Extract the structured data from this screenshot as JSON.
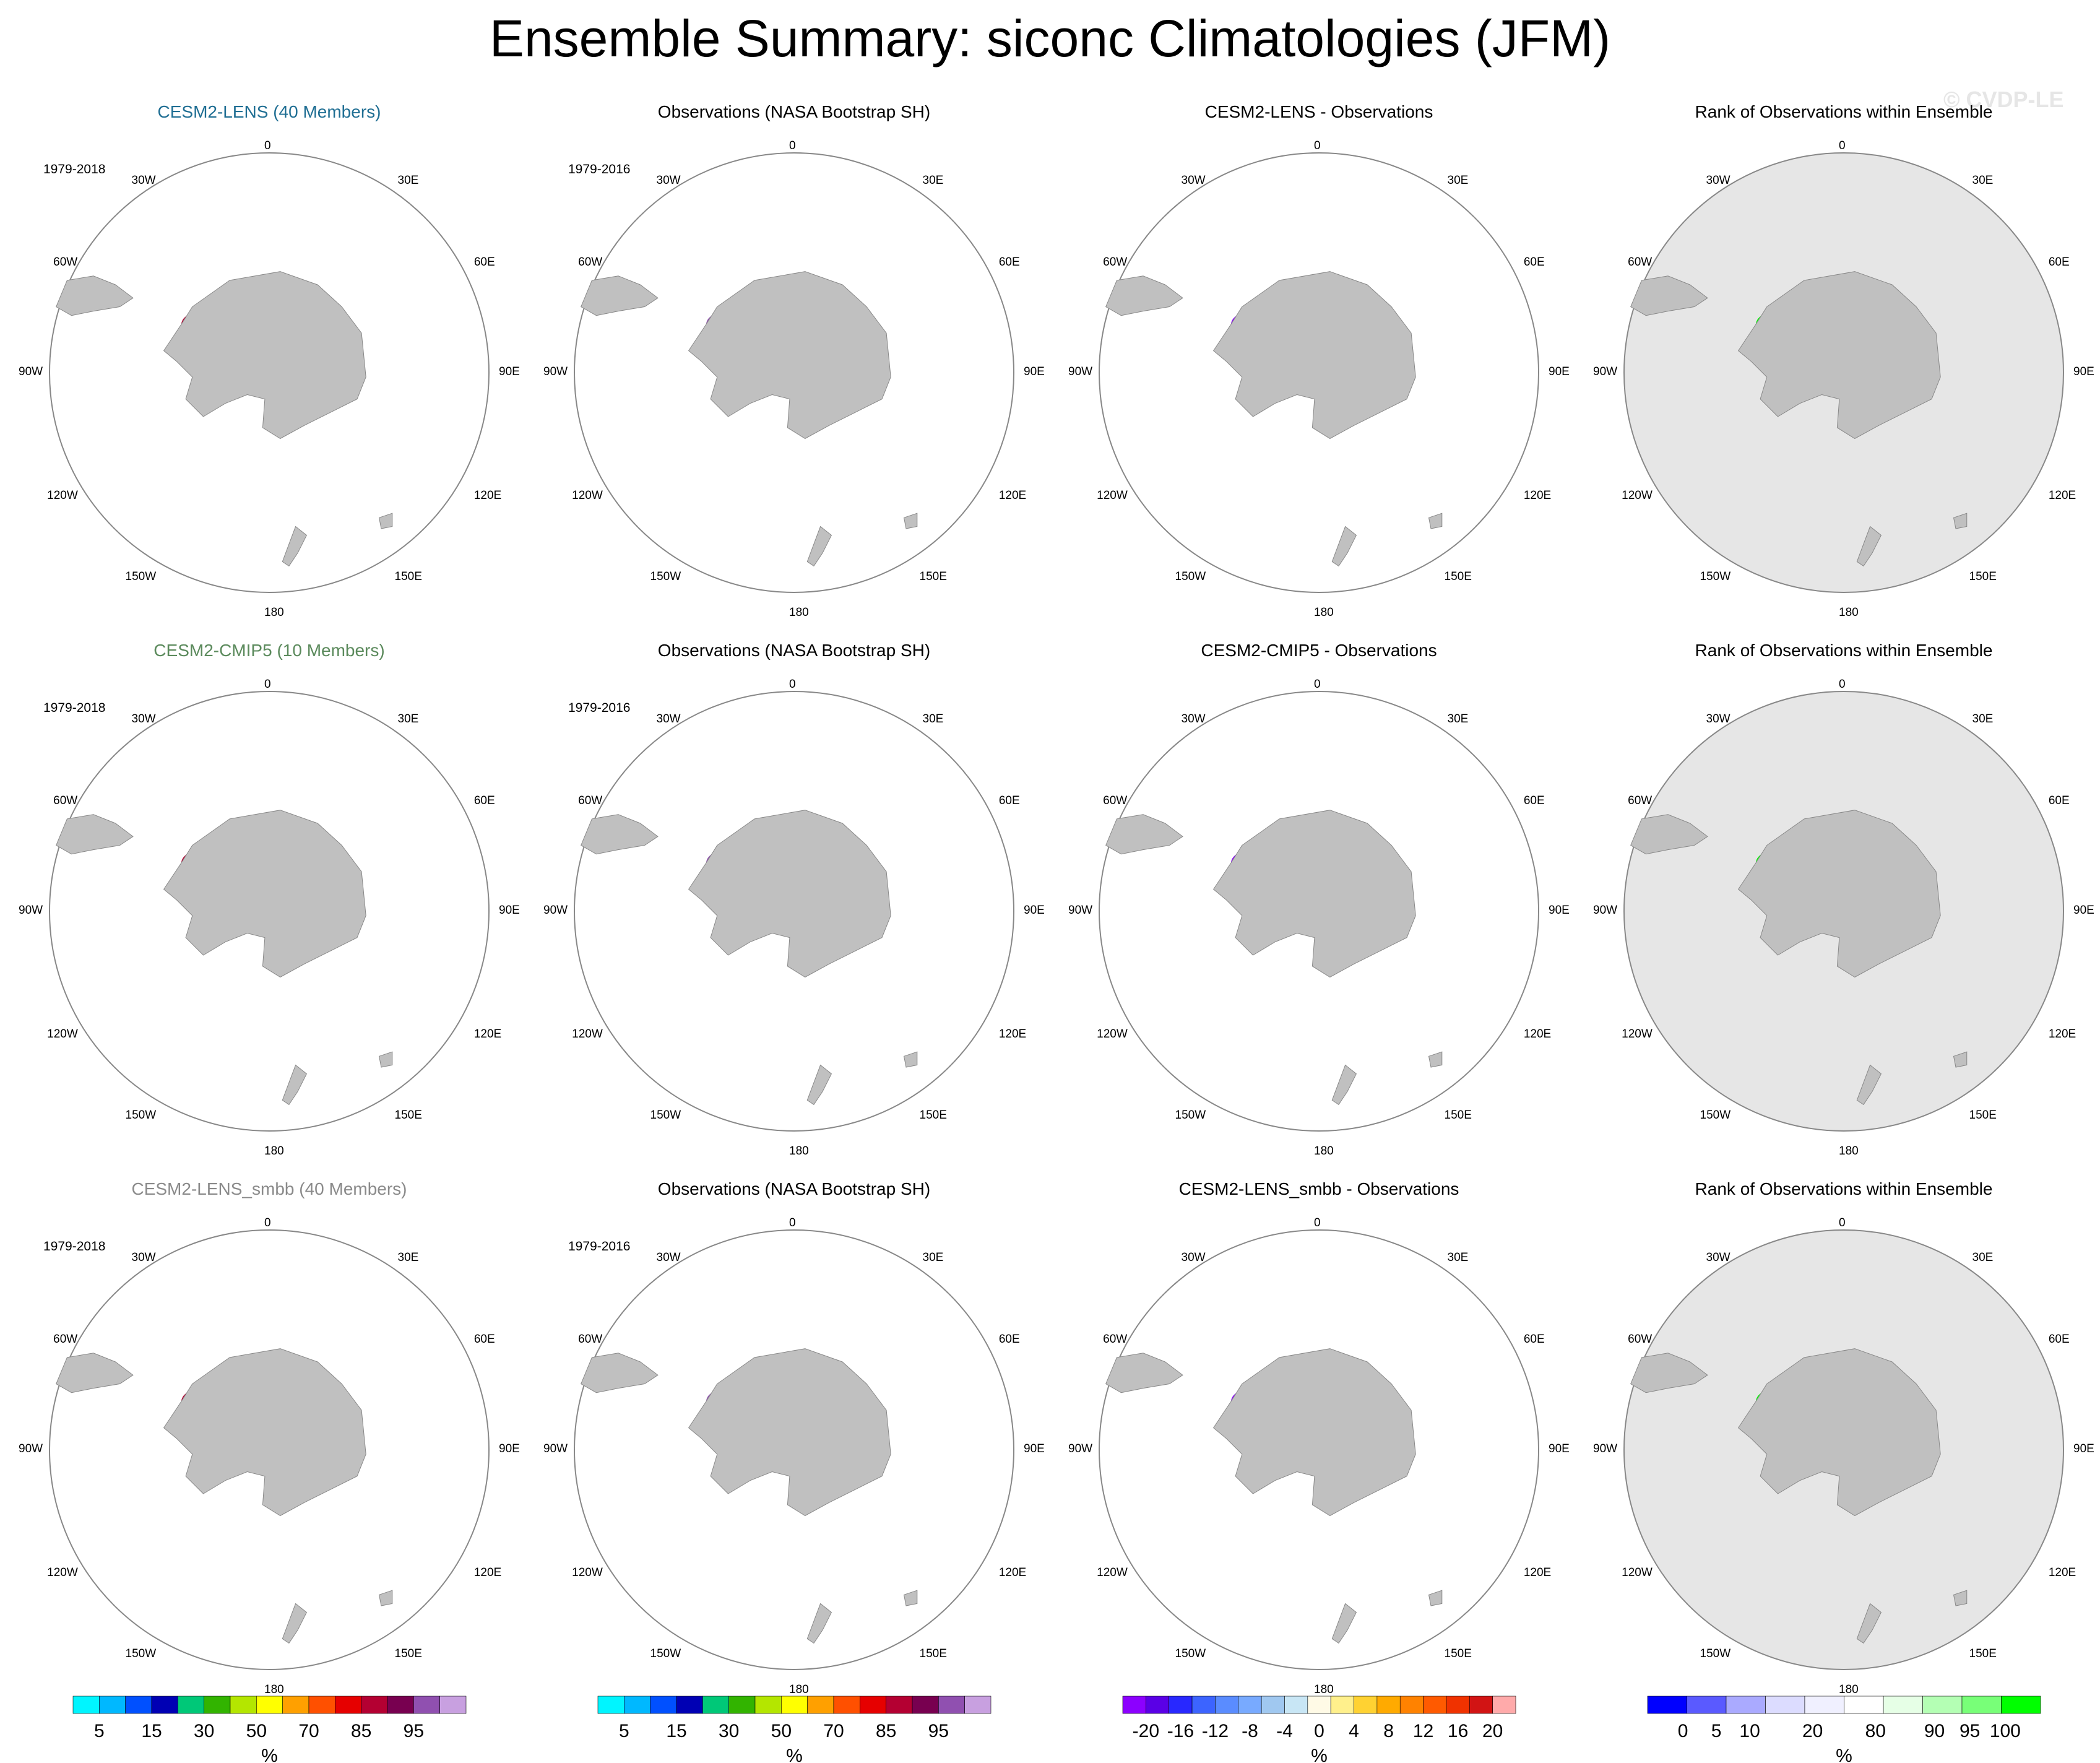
{
  "title": "Ensemble Summary: siconc Climatologies (JFM)",
  "watermark": "© CVDP-LE",
  "rows": [
    {
      "model": {
        "title": "CESM2-LENS (40 Members)",
        "title_color": "#1f6e93",
        "period": "1979-2018"
      },
      "obs": {
        "title": "Observations (NASA Bootstrap SH)",
        "period": "1979-2016"
      },
      "diff": {
        "title": "CESM2-LENS - Observations"
      },
      "rank": {
        "title": "Rank of Observations within Ensemble"
      }
    },
    {
      "model": {
        "title": "CESM2-CMIP5 (10 Members)",
        "title_color": "#5b8a5c",
        "period": "1979-2018"
      },
      "obs": {
        "title": "Observations (NASA Bootstrap SH)",
        "period": "1979-2016"
      },
      "diff": {
        "title": "CESM2-CMIP5 - Observations"
      },
      "rank": {
        "title": "Rank of Observations within Ensemble"
      }
    },
    {
      "model": {
        "title": "CESM2-LENS_smbb (40 Members)",
        "title_color": "#8a8a8a",
        "period": "1979-2018"
      },
      "obs": {
        "title": "Observations (NASA Bootstrap SH)",
        "period": "1979-2016"
      },
      "diff": {
        "title": "CESM2-LENS_smbb - Observations"
      },
      "rank": {
        "title": "Rank of Observations within Ensemble"
      }
    }
  ],
  "longitude_labels": {
    "top": "0",
    "bottom": "180",
    "upper_left": "30W",
    "upper_right": "30E",
    "mid_upper_left": "60W",
    "mid_upper_right": "60E",
    "left": "90W",
    "right": "90E",
    "mid_lower_left": "120W",
    "mid_lower_right": "120E",
    "lower_left": "150W",
    "lower_right": "150E"
  },
  "colorbars": {
    "siconc": {
      "unit": "%",
      "colors": [
        "#00f5ff",
        "#00b8ff",
        "#0050ff",
        "#0000b4",
        "#00c878",
        "#32b400",
        "#b4e600",
        "#ffff00",
        "#ffa000",
        "#ff5000",
        "#e60000",
        "#b40032",
        "#780050",
        "#9050b0",
        "#c8a0e0"
      ],
      "tick_labels": [
        "5",
        "15",
        "30",
        "50",
        "70",
        "85",
        "95"
      ]
    },
    "difference": {
      "unit": "%",
      "colors": [
        "#8c00ff",
        "#5a00e6",
        "#2828ff",
        "#3c64ff",
        "#5a8cff",
        "#78aaff",
        "#a0c8f0",
        "#c8e6f5",
        "#fffae6",
        "#fff08c",
        "#ffd232",
        "#ffaa00",
        "#ff8200",
        "#ff5a00",
        "#f03200",
        "#d21414",
        "#ffaaaa"
      ],
      "tick_labels": [
        "-20",
        "-16",
        "-12",
        "-8",
        "-4",
        "0",
        "4",
        "8",
        "12",
        "16",
        "20"
      ]
    },
    "rank": {
      "unit": "%",
      "colors": [
        "#0000ff",
        "#5a5aff",
        "#aaaaff",
        "#dcdcff",
        "#f0f0ff",
        "#ffffff",
        "#e6ffe6",
        "#b4ffb4",
        "#78ff78",
        "#00ff00"
      ],
      "tick_labels": [
        "0",
        "5",
        "10",
        "20",
        "80",
        "90",
        "95",
        "100"
      ]
    }
  },
  "map_colors": {
    "land": "#c0c0c0",
    "rank_ocean": "#e6e6e6"
  }
}
